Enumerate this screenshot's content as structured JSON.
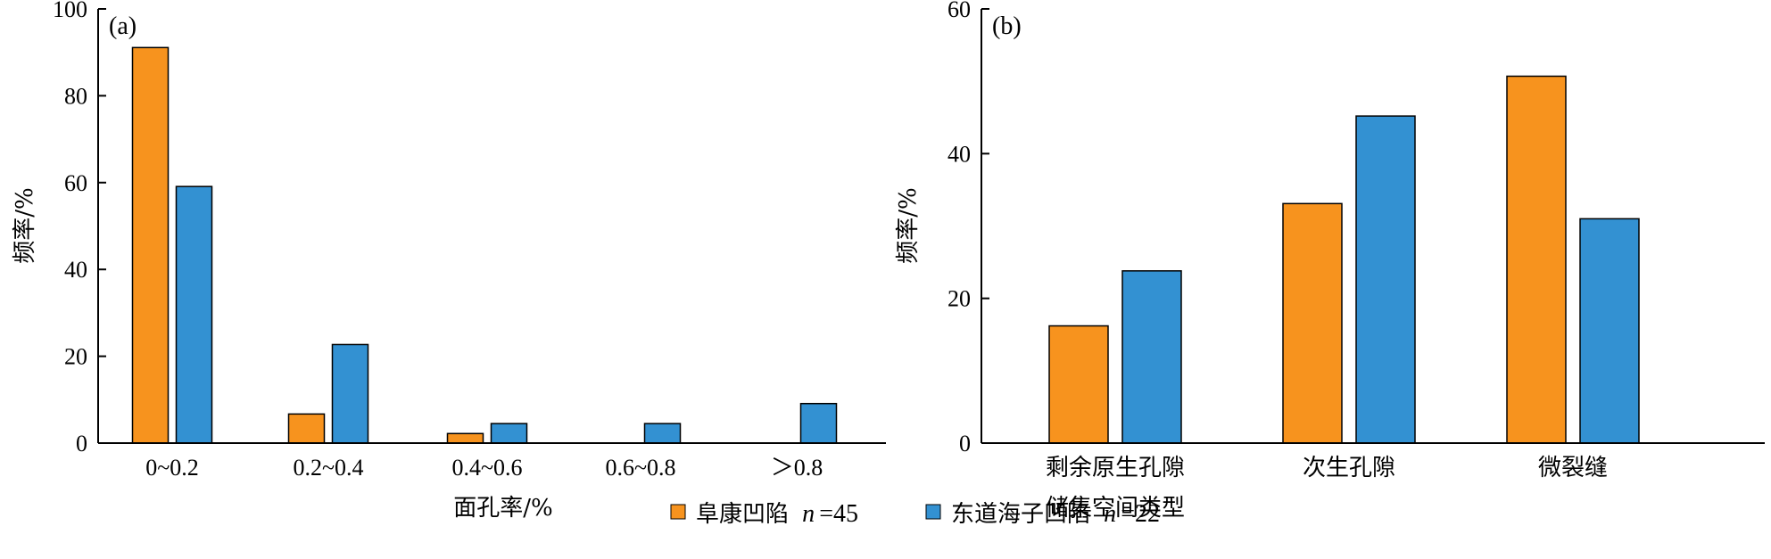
{
  "colors": {
    "series1": "#F7931E",
    "series2": "#3391D2",
    "axis": "#000000"
  },
  "legend": [
    {
      "name": "阜康凹陷",
      "n_label": "n",
      "n_value": "=45"
    },
    {
      "name": "东道海子凹陷",
      "n_label": "n",
      "n_value": "=22"
    }
  ],
  "chart_data": [
    {
      "type": "bar",
      "panel_label": "(a)",
      "xlabel": "面孔率/%",
      "ylabel": "频率/%",
      "ylim": [
        0,
        100
      ],
      "yticks": [
        "0",
        "20",
        "40",
        "60",
        "80",
        "100"
      ],
      "categories": [
        "0~0.2",
        "0.2~0.4",
        "0.4~0.6",
        "0.6~0.8",
        "＞0.8"
      ],
      "series": [
        {
          "name": "阜康凹陷",
          "values": [
            91.1,
            6.7,
            2.2,
            0,
            0
          ]
        },
        {
          "name": "东道海子凹陷",
          "values": [
            59.1,
            22.7,
            4.5,
            4.5,
            9.1
          ]
        }
      ]
    },
    {
      "type": "bar",
      "panel_label": "(b)",
      "xlabel": "储集空间类型",
      "ylabel": "频率/%",
      "ylim": [
        0,
        60
      ],
      "yticks": [
        "0",
        "20",
        "40",
        "60"
      ],
      "categories": [
        "剩余原生孔隙",
        "次生孔隙",
        "微裂缝"
      ],
      "series": [
        {
          "name": "阜康凹陷",
          "values": [
            16.2,
            33.1,
            50.7
          ]
        },
        {
          "name": "东道海子凹陷",
          "values": [
            23.8,
            45.2,
            31.0
          ]
        }
      ]
    }
  ]
}
